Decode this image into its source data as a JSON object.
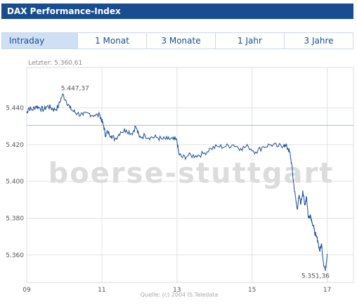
{
  "header": {
    "title": "DAX Performance-Index"
  },
  "tabs": [
    {
      "label": "Intraday",
      "active": true
    },
    {
      "label": "1 Monat",
      "active": false
    },
    {
      "label": "3 Monate",
      "active": false
    },
    {
      "label": "1 Jahr",
      "active": false
    },
    {
      "label": "3 Jahre",
      "active": false
    }
  ],
  "colors": {
    "header_bg": "#1a4d8f",
    "tab_active_bg": "#cfe0f5",
    "line": "#1a4d8f",
    "ref_line": "#8ec3ea",
    "grid": "#dcdcdc"
  },
  "chart_data": {
    "type": "line",
    "last_label": "Letzter: 5.360,61",
    "source_label": "Quelle: (c) 2004 IS.Teledata",
    "watermark": "boerse-stuttgart",
    "high_label": "5.447,37",
    "low_label": "5.351,36",
    "x_ticks": [
      9,
      11,
      13,
      15,
      17
    ],
    "x_tick_labels": [
      "09",
      "11",
      "13",
      "15",
      "17"
    ],
    "y_ticks": [
      5360,
      5380,
      5400,
      5420,
      5440
    ],
    "y_tick_labels": [
      "5.360",
      "5.380",
      "5.400",
      "5.420",
      "5.440"
    ],
    "xlim": [
      9,
      17.7
    ],
    "ylim": [
      5345,
      5462
    ],
    "reference_value": 5430.5,
    "x": [
      9.0,
      9.05,
      9.15,
      9.25,
      9.35,
      9.45,
      9.55,
      9.65,
      9.75,
      9.85,
      9.95,
      10.05,
      10.15,
      10.25,
      10.35,
      10.5,
      10.65,
      10.8,
      10.95,
      11.0,
      11.05,
      11.1,
      11.15,
      11.25,
      11.35,
      11.5,
      11.65,
      11.8,
      11.9,
      12.0,
      12.15,
      12.3,
      12.45,
      12.6,
      12.75,
      12.9,
      13.0,
      13.05,
      13.15,
      13.3,
      13.5,
      13.7,
      13.9,
      14.1,
      14.3,
      14.5,
      14.7,
      14.9,
      15.1,
      15.3,
      15.5,
      15.7,
      15.85,
      15.95,
      16.0,
      16.05,
      16.1,
      16.15,
      16.2,
      16.25,
      16.3,
      16.35,
      16.4,
      16.45,
      16.5,
      16.55,
      16.6,
      16.65,
      16.7,
      16.75,
      16.8,
      16.85,
      16.9,
      16.95,
      17.0
    ],
    "y": [
      5437,
      5440,
      5439,
      5441,
      5440,
      5439,
      5441,
      5440,
      5439,
      5441,
      5447.37,
      5444,
      5440,
      5438,
      5437,
      5436,
      5437,
      5436,
      5436,
      5433,
      5430,
      5425,
      5427,
      5425,
      5423,
      5427,
      5428,
      5426,
      5430,
      5424,
      5425,
      5424,
      5424,
      5423,
      5423,
      5423,
      5422,
      5415,
      5413,
      5414,
      5414,
      5415,
      5418,
      5419,
      5419,
      5420,
      5418,
      5419,
      5416,
      5419,
      5420,
      5419,
      5420,
      5418,
      5416,
      5410,
      5400,
      5392,
      5385,
      5392,
      5388,
      5395,
      5387,
      5392,
      5380,
      5382,
      5378,
      5374,
      5370,
      5368,
      5362,
      5366,
      5356,
      5351.36,
      5360.61
    ]
  }
}
